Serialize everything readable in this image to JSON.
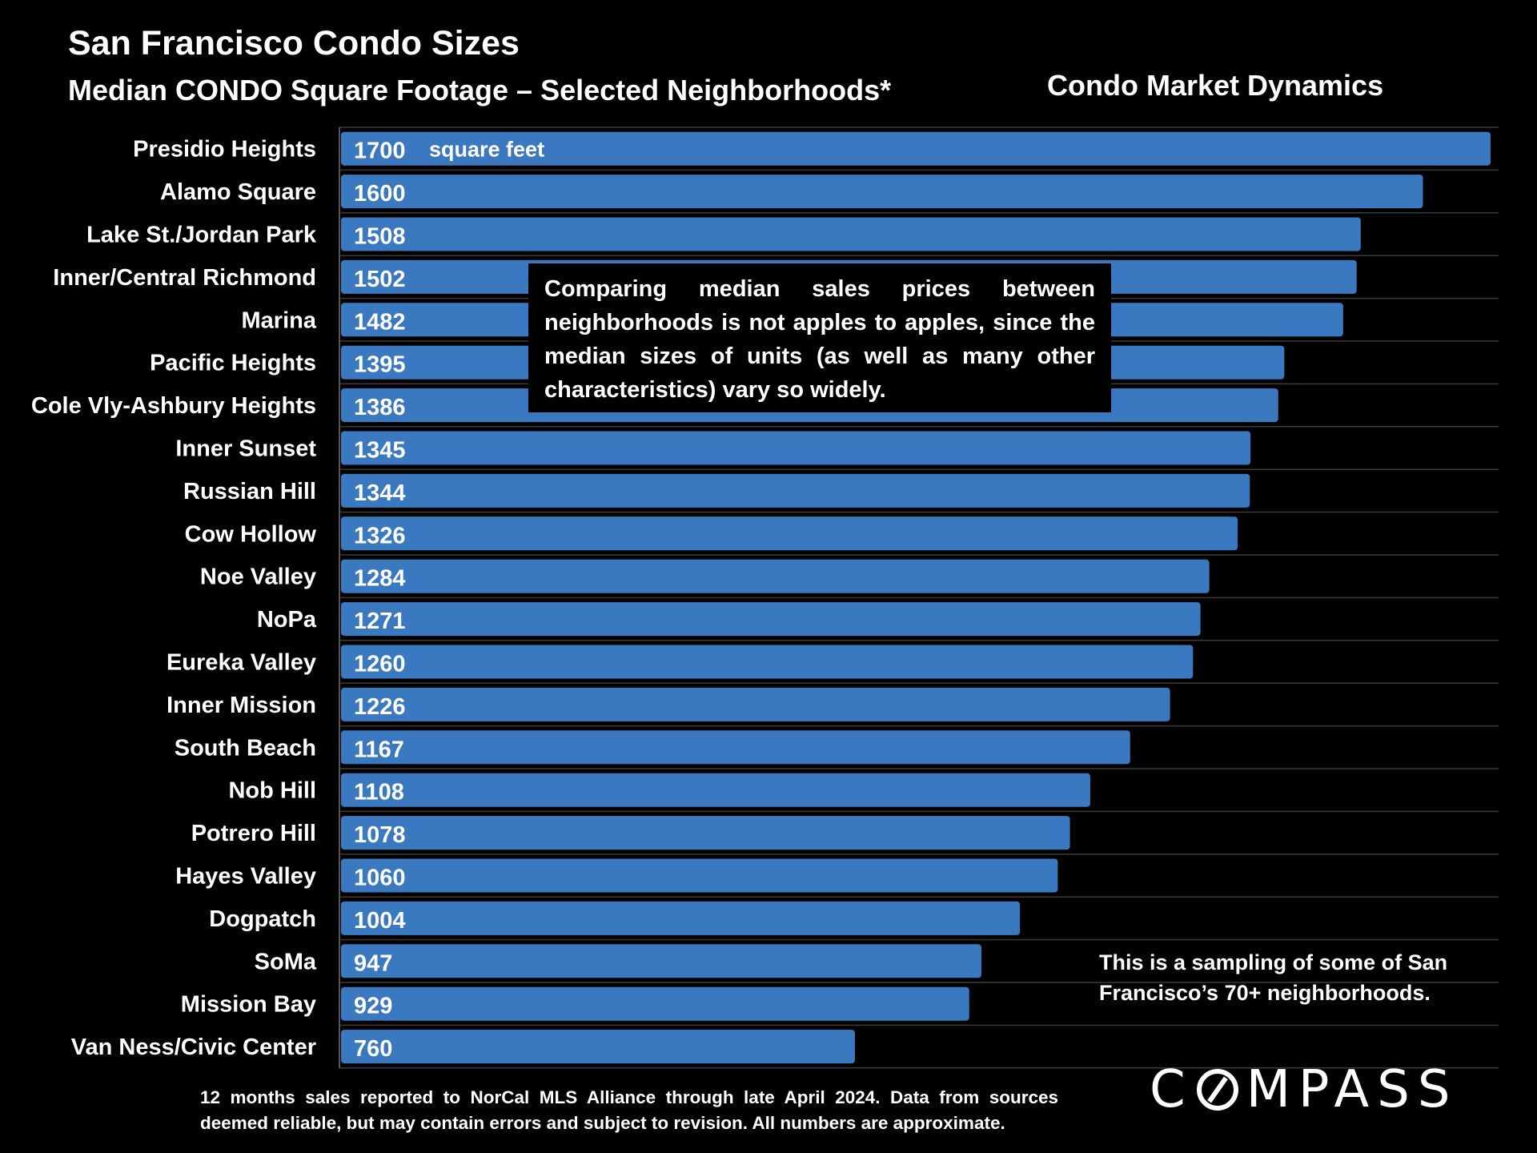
{
  "header": {
    "title": "San Francisco Condo Sizes",
    "subtitle": "Median CONDO Square Footage – Selected Neighborhoods*",
    "section": "Condo Market Dynamics"
  },
  "callout": "Comparing median sales prices between neighborhoods is not apples to apples, since the median sizes of units (as well as many other characteristics) vary so widely.",
  "note": "This is a sampling of some of San Francisco’s 70+ neighborhoods.",
  "footer": "12 months sales reported to NorCal MLS Alliance through late April 2024. Data from sources deemed reliable, but may contain errors and subject to revision. All numbers are approximate.",
  "logo": {
    "left": "C",
    "right": "MPASS"
  },
  "colors": {
    "bar": "#3a78c0",
    "gridline": "#3a3a3a",
    "background": "#000000",
    "text": "#ffffff"
  },
  "chart_data": {
    "type": "bar",
    "orientation": "horizontal",
    "title": "Median CONDO Square Footage – Selected Neighborhoods*",
    "unit_label": "square feet",
    "xlim": [
      0,
      1700
    ],
    "grid": true,
    "categories": [
      "Presidio Heights",
      "Alamo Square",
      "Lake St./Jordan Park",
      "Inner/Central Richmond",
      "Marina",
      "Pacific Heights",
      "Cole Vly-Ashbury Heights",
      "Inner Sunset",
      "Russian Hill",
      "Cow Hollow",
      "Noe Valley",
      "NoPa",
      "Eureka Valley",
      "Inner Mission",
      "South Beach",
      "Nob Hill",
      "Potrero Hill",
      "Hayes Valley",
      "Dogpatch",
      "SoMa",
      "Mission Bay",
      "Van Ness/Civic Center"
    ],
    "values": [
      1700,
      1600,
      1508,
      1502,
      1482,
      1395,
      1386,
      1345,
      1344,
      1326,
      1284,
      1271,
      1260,
      1226,
      1167,
      1108,
      1078,
      1060,
      1004,
      947,
      929,
      760
    ]
  }
}
